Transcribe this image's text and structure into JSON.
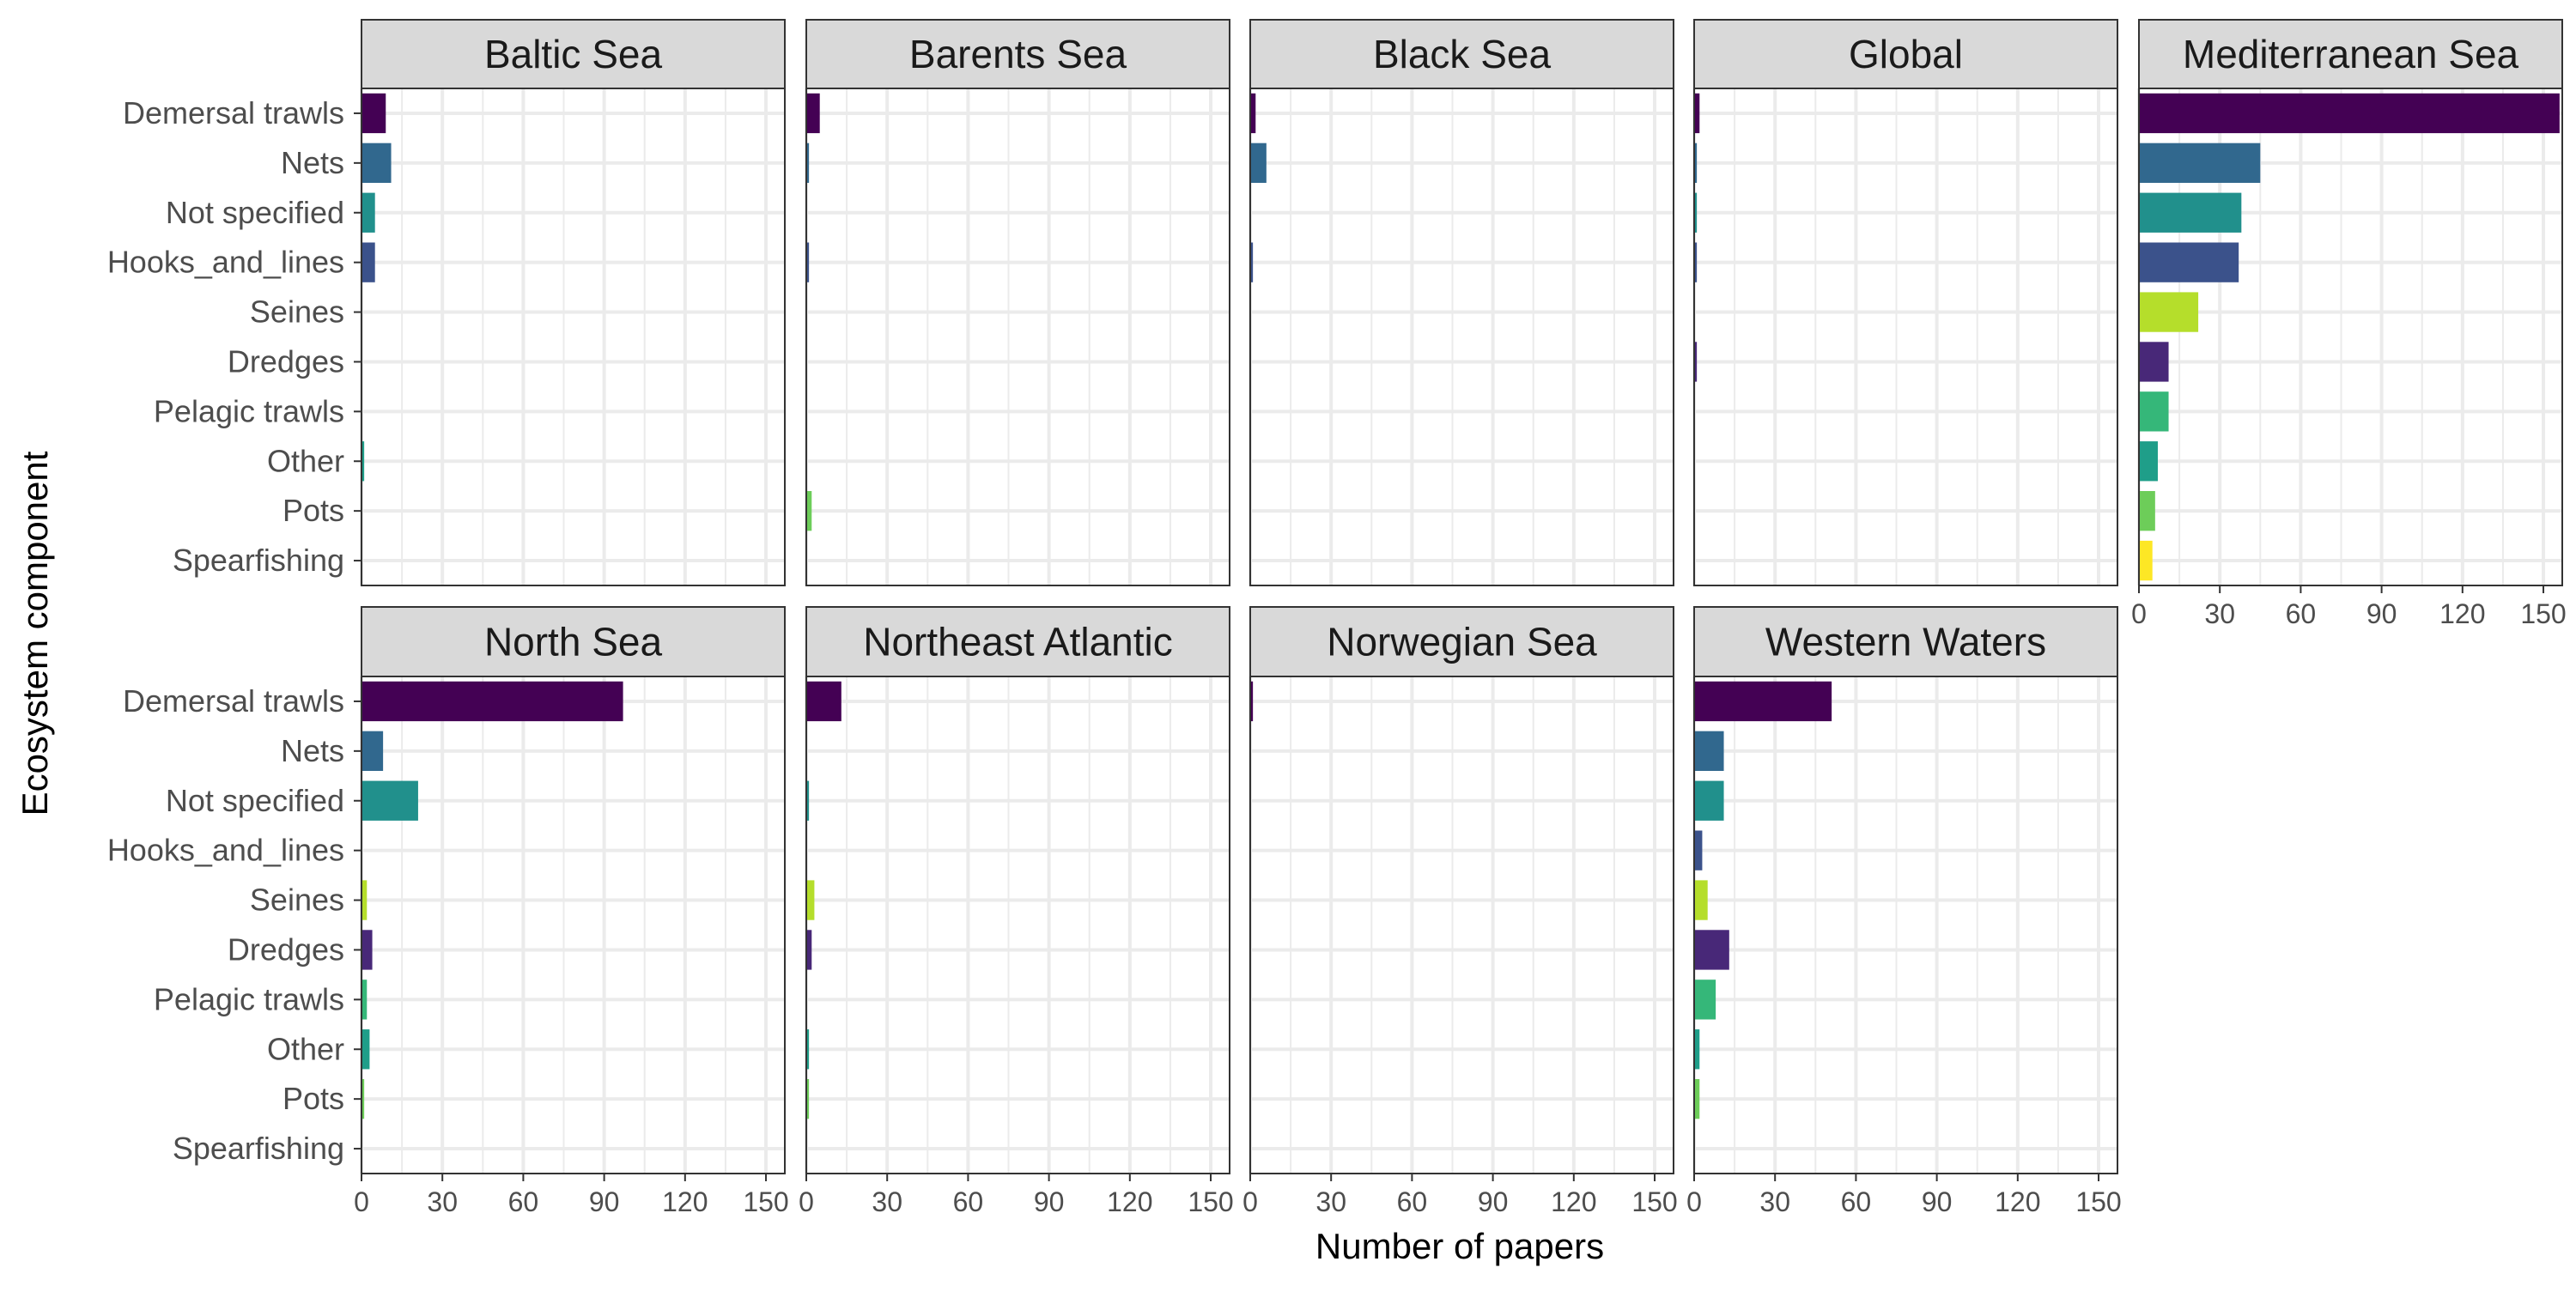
{
  "chart_data": {
    "type": "bar",
    "orientation": "horizontal",
    "xlabel": "Number of papers",
    "ylabel": "Ecosystem component",
    "xlim": [
      0,
      157
    ],
    "x_ticks": [
      0,
      30,
      60,
      90,
      120,
      150
    ],
    "grid": true,
    "legend": "none",
    "categories": [
      "Demersal trawls",
      "Nets",
      "Not specified",
      "Hooks_and_lines",
      "Seines",
      "Dredges",
      "Pelagic trawls",
      "Other",
      "Pots",
      "Spearfishing"
    ],
    "category_colors": [
      "#440154",
      "#31688E",
      "#21908C",
      "#3B528B",
      "#B5DE2B",
      "#482878",
      "#35B779",
      "#1F9E89",
      "#6DCD59",
      "#FDE725"
    ],
    "facets": [
      {
        "name": "Baltic Sea",
        "values": [
          9,
          11,
          5,
          5,
          0,
          0,
          0,
          1,
          0,
          0
        ]
      },
      {
        "name": "Barents Sea",
        "values": [
          5,
          1,
          0,
          1,
          0,
          0,
          0,
          0,
          2,
          0
        ]
      },
      {
        "name": "Black Sea",
        "values": [
          2,
          6,
          0,
          1,
          0,
          0,
          0,
          0,
          0,
          0
        ]
      },
      {
        "name": "Global",
        "values": [
          2,
          1,
          1,
          1,
          0,
          1,
          0,
          0,
          0,
          0
        ]
      },
      {
        "name": "Mediterranean Sea",
        "values": [
          156,
          45,
          38,
          37,
          22,
          11,
          11,
          7,
          6,
          5
        ]
      },
      {
        "name": "North Sea",
        "values": [
          97,
          8,
          21,
          0,
          2,
          4,
          2,
          3,
          1,
          0
        ]
      },
      {
        "name": "Northeast Atlantic",
        "values": [
          13,
          0,
          1,
          0,
          3,
          2,
          0,
          1,
          1,
          0
        ]
      },
      {
        "name": "Norwegian Sea",
        "values": [
          1,
          0,
          0,
          0,
          0,
          0,
          0,
          0,
          0,
          0
        ]
      },
      {
        "name": "Western Waters",
        "values": [
          51,
          11,
          11,
          3,
          5,
          13,
          8,
          2,
          2,
          0
        ]
      }
    ]
  }
}
